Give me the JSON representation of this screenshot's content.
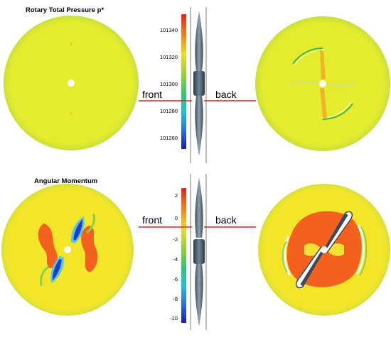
{
  "panels": {
    "top": {
      "title": "Rotary Total Pressure p*",
      "front_label": "front",
      "back_label": "back",
      "colorbar_ticks": [
        "101340",
        "101320",
        "101300",
        "101280",
        "101260"
      ],
      "colors": {
        "disk": "#e5ec2e",
        "rim": "#6fbd3c"
      }
    },
    "bottom": {
      "title": "Angular Momentum",
      "front_label": "front",
      "back_label": "back",
      "colorbar_ticks": [
        "2",
        "0",
        "-2",
        "-4",
        "-6",
        "-8",
        "-10"
      ],
      "colors": {
        "disk": "#f2e52a",
        "lobe": "#f2621e"
      }
    }
  },
  "colors": {
    "cut_line": "#e02020",
    "colormap_top": "#e8231a",
    "colormap_bottom": "#1a1aa8"
  }
}
